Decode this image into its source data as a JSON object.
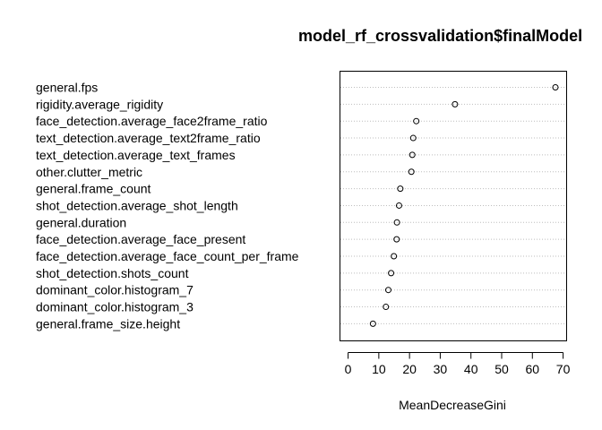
{
  "chart_data": {
    "type": "scatter",
    "style": "dotchart",
    "title": "model_rf_crossvalidation$finalModel",
    "xlabel": "MeanDecreaseGini",
    "ylabel": "",
    "xlim": [
      -2.5,
      71
    ],
    "xticks": [
      0,
      10,
      20,
      30,
      40,
      50,
      60,
      70
    ],
    "grid": "dotted horizontal lines per category",
    "categories": [
      "general.fps",
      "rigidity.average_rigidity",
      "face_detection.average_face2frame_ratio",
      "text_detection.average_text2frame_ratio",
      "text_detection.average_text_frames",
      "other.clutter_metric",
      "general.frame_count",
      "shot_detection.average_shot_length",
      "general.duration",
      "face_detection.average_face_present",
      "face_detection.average_face_count_per_frame",
      "shot_detection.shots_count",
      "dominant_color.histogram_7",
      "dominant_color.histogram_3",
      "general.frame_size.height"
    ],
    "values": [
      67.5,
      34.8,
      22.2,
      21.2,
      20.9,
      20.6,
      17.0,
      16.6,
      15.9,
      15.8,
      14.9,
      14.0,
      13.1,
      12.3,
      8.1
    ]
  }
}
